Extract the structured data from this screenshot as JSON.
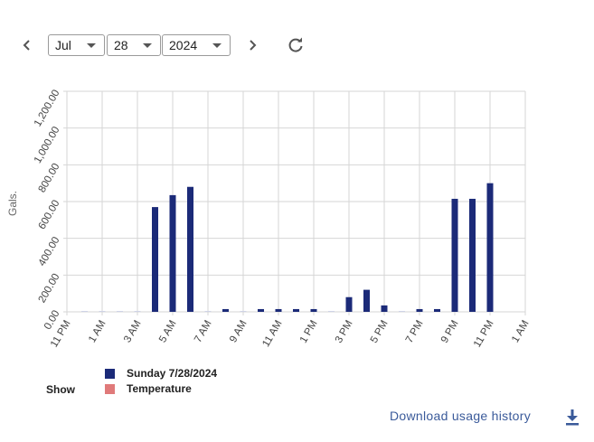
{
  "date_picker": {
    "month": "Jul",
    "day": "28",
    "year": "2024",
    "prev_icon": "chevron-left-icon",
    "next_icon": "chevron-right-icon",
    "refresh_icon": "refresh-icon"
  },
  "legend": {
    "show_label": "Show",
    "items": [
      {
        "label": "Sunday 7/28/2024",
        "color": "#1b2a78"
      },
      {
        "label": "Temperature",
        "color": "#e07a7a"
      }
    ]
  },
  "download": {
    "label": "Download usage history",
    "icon": "download-icon"
  },
  "chart_data": {
    "type": "bar",
    "ylabel": "Gals.",
    "ylim": [
      0,
      1200
    ],
    "yticks": [
      "0.00",
      "200.00",
      "400.00",
      "600.00",
      "800.00",
      "1,000.00",
      "1,200.00"
    ],
    "xticks": [
      "11 PM",
      "1 AM",
      "3 AM",
      "5 AM",
      "7 AM",
      "9 AM",
      "11 AM",
      "1 PM",
      "3 PM",
      "5 PM",
      "7 PM",
      "9 PM",
      "11 PM",
      "1 AM"
    ],
    "grid": true,
    "legend_position": "bottom-left",
    "series": [
      {
        "name": "Sunday 7/28/2024",
        "color": "#1b2a78",
        "hours": [
          "12 AM",
          "1 AM",
          "2 AM",
          "3 AM",
          "4 AM",
          "5 AM",
          "6 AM",
          "7 AM",
          "8 AM",
          "9 AM",
          "10 AM",
          "11 AM",
          "12 PM",
          "1 PM",
          "2 PM",
          "3 PM",
          "4 PM",
          "5 PM",
          "6 PM",
          "7 PM",
          "8 PM",
          "9 PM",
          "10 PM",
          "11 PM"
        ],
        "values": [
          0,
          0,
          0,
          0,
          570,
          635,
          680,
          0,
          15,
          0,
          15,
          15,
          15,
          15,
          0,
          80,
          120,
          35,
          0,
          15,
          15,
          615,
          615,
          700
        ]
      }
    ]
  }
}
